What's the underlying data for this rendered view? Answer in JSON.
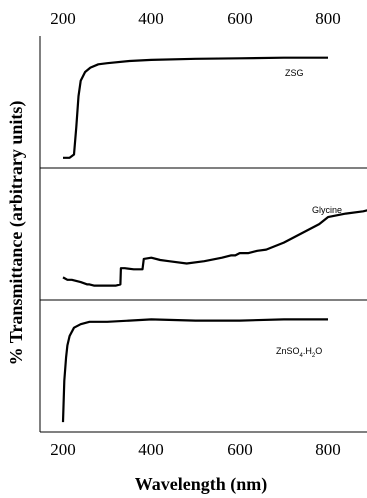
{
  "chart_data": {
    "type": "line",
    "xlabel": "Wavelength (nm)",
    "ylabel": "% Transmittance (arbitrary units)",
    "xlim": [
      165,
      890
    ],
    "x_ticks": [
      "200",
      "400",
      "600",
      "800"
    ],
    "x_tick_values": [
      200,
      400,
      600,
      800
    ],
    "grid": false,
    "line_color": "#000000",
    "panels": [
      {
        "name": "ZSG",
        "label": "ZSG",
        "ylim": [
          0,
          100
        ],
        "x": [
          200,
          215,
          225,
          230,
          235,
          240,
          250,
          262,
          280,
          300,
          350,
          400,
          500,
          600,
          700,
          800
        ],
        "y": [
          2,
          2,
          5,
          30,
          58,
          72,
          80,
          84,
          87,
          88,
          90,
          91,
          92,
          92.5,
          93,
          93
        ]
      },
      {
        "name": "Glycine",
        "label": "Glycine",
        "ylim": [
          0,
          100
        ],
        "x": [
          200,
          210,
          220,
          240,
          255,
          260,
          270,
          290,
          300,
          320,
          330,
          331,
          340,
          360,
          380,
          383,
          400,
          420,
          440,
          480,
          520,
          560,
          580,
          590,
          600,
          620,
          640,
          660,
          700,
          740,
          780,
          800,
          840,
          880,
          890
        ],
        "y": [
          16,
          14,
          14,
          12,
          10,
          10,
          9,
          9,
          9,
          9,
          10,
          24,
          24,
          23,
          23,
          32,
          33,
          31,
          30,
          28,
          30,
          33,
          35,
          35,
          37,
          37,
          39,
          40,
          46,
          54,
          62,
          68,
          71,
          73,
          74
        ]
      },
      {
        "name": "ZnSO4H2O",
        "label": "ZnSO",
        "label_sub1": "4",
        "label_mid": ".H",
        "label_sub2": "2",
        "label_end": "O",
        "ylim": [
          0,
          100
        ],
        "x": [
          200,
          203,
          207,
          210,
          215,
          225,
          240,
          260,
          300,
          350,
          400,
          500,
          600,
          700,
          800
        ],
        "y": [
          5,
          40,
          60,
          70,
          78,
          85,
          88,
          90,
          90,
          91,
          92,
          91,
          91,
          92,
          92
        ]
      }
    ]
  }
}
